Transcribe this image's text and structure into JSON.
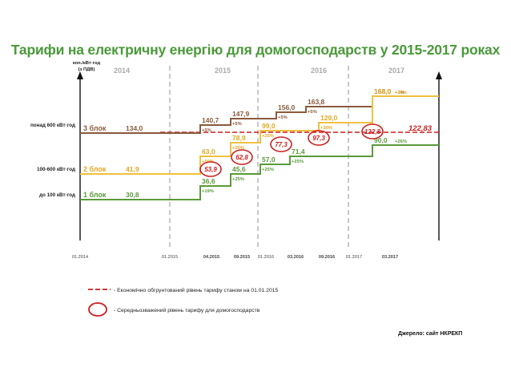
{
  "title": "Тарифи на електричну енергію для домогосподарств у 2015-2017 роках",
  "source": "Джерело: сайт НКРЕКП",
  "chart_data": {
    "type": "line",
    "y_axis_label": [
      "коп./кВт·год",
      "(з ПДВ)"
    ],
    "years": [
      "2014",
      "2015",
      "2016",
      "2017"
    ],
    "x_ticks": [
      "01.2014",
      "01.2015",
      "04.2015",
      "09.2015",
      "01.2016",
      "03.2016",
      "09.2016",
      "01.2017",
      "03.2017"
    ],
    "row_labels": [
      "понад 600 кВт·год",
      "100-600 кВт·год",
      "до 100 кВт·год"
    ],
    "series": [
      {
        "name": "3 блок",
        "color": "#8b5a3c",
        "values": [
          "134,0",
          "140,7",
          "147,9",
          "156,0",
          "163,8",
          "168,0"
        ],
        "changes": [
          "",
          "+5%",
          "+5%",
          "+5%",
          "+5%",
          "+3%"
        ]
      },
      {
        "name": "2 блок",
        "color": "#f0c040",
        "values": [
          "41,9",
          "63,0",
          "78,9",
          "99,0",
          "129,0",
          "168,0"
        ],
        "changes": [
          "",
          "+50%",
          "+25%",
          "+25%",
          "+30%",
          "+30%"
        ]
      },
      {
        "name": "1 блок",
        "color": "#5a9a3a",
        "values": [
          "30,8",
          "36,6",
          "45,6",
          "57,0",
          "71,4",
          "90,0"
        ],
        "changes": [
          "",
          "+19%",
          "+25%",
          "+25%",
          "+25%",
          "+26%"
        ]
      }
    ],
    "weighted_average": [
      "53,9",
      "62,8",
      "77,3",
      "97,3",
      "122,8"
    ],
    "economic_level": "122,83",
    "legend": [
      "- Економічно обгрунтований рівень тарифу станом на 01.01.2015",
      "- Середньозважений рівень тарифу для домогосподарств"
    ]
  }
}
